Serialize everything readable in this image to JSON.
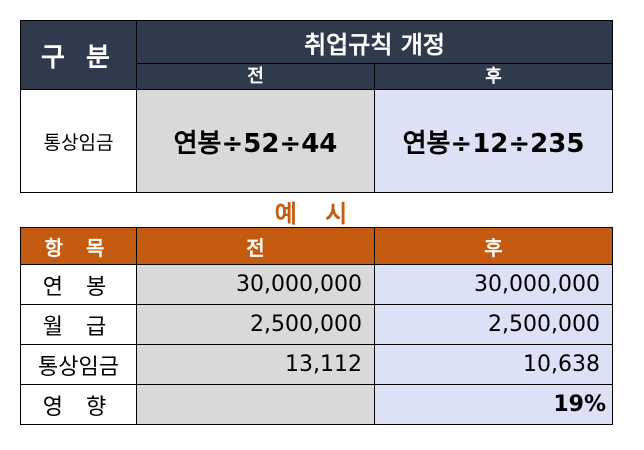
{
  "top_table": {
    "label_header": "구 분",
    "title": "취업규칙 개정",
    "before": "전",
    "after": "후",
    "row_label": "통상임금",
    "formula_before": "연봉÷52÷44",
    "formula_after": "연봉÷12÷235"
  },
  "example": {
    "title": "예 시",
    "headers": {
      "item": "항 목",
      "before": "전",
      "after": "후"
    },
    "rows": [
      {
        "label": "연 봉",
        "before": "30,000,000",
        "after": "30,000,000"
      },
      {
        "label": "월 급",
        "before": "2,500,000",
        "after": "2,500,000"
      },
      {
        "label": "통상임금",
        "before": "13,112",
        "after": "10,638"
      },
      {
        "label": "영 향",
        "before": "",
        "after": "19%"
      }
    ]
  },
  "colors": {
    "dark_header": "#2f3b4d",
    "orange_accent": "#c55a11",
    "before_fill": "#d9d9d9",
    "after_fill": "#dce1f5"
  }
}
